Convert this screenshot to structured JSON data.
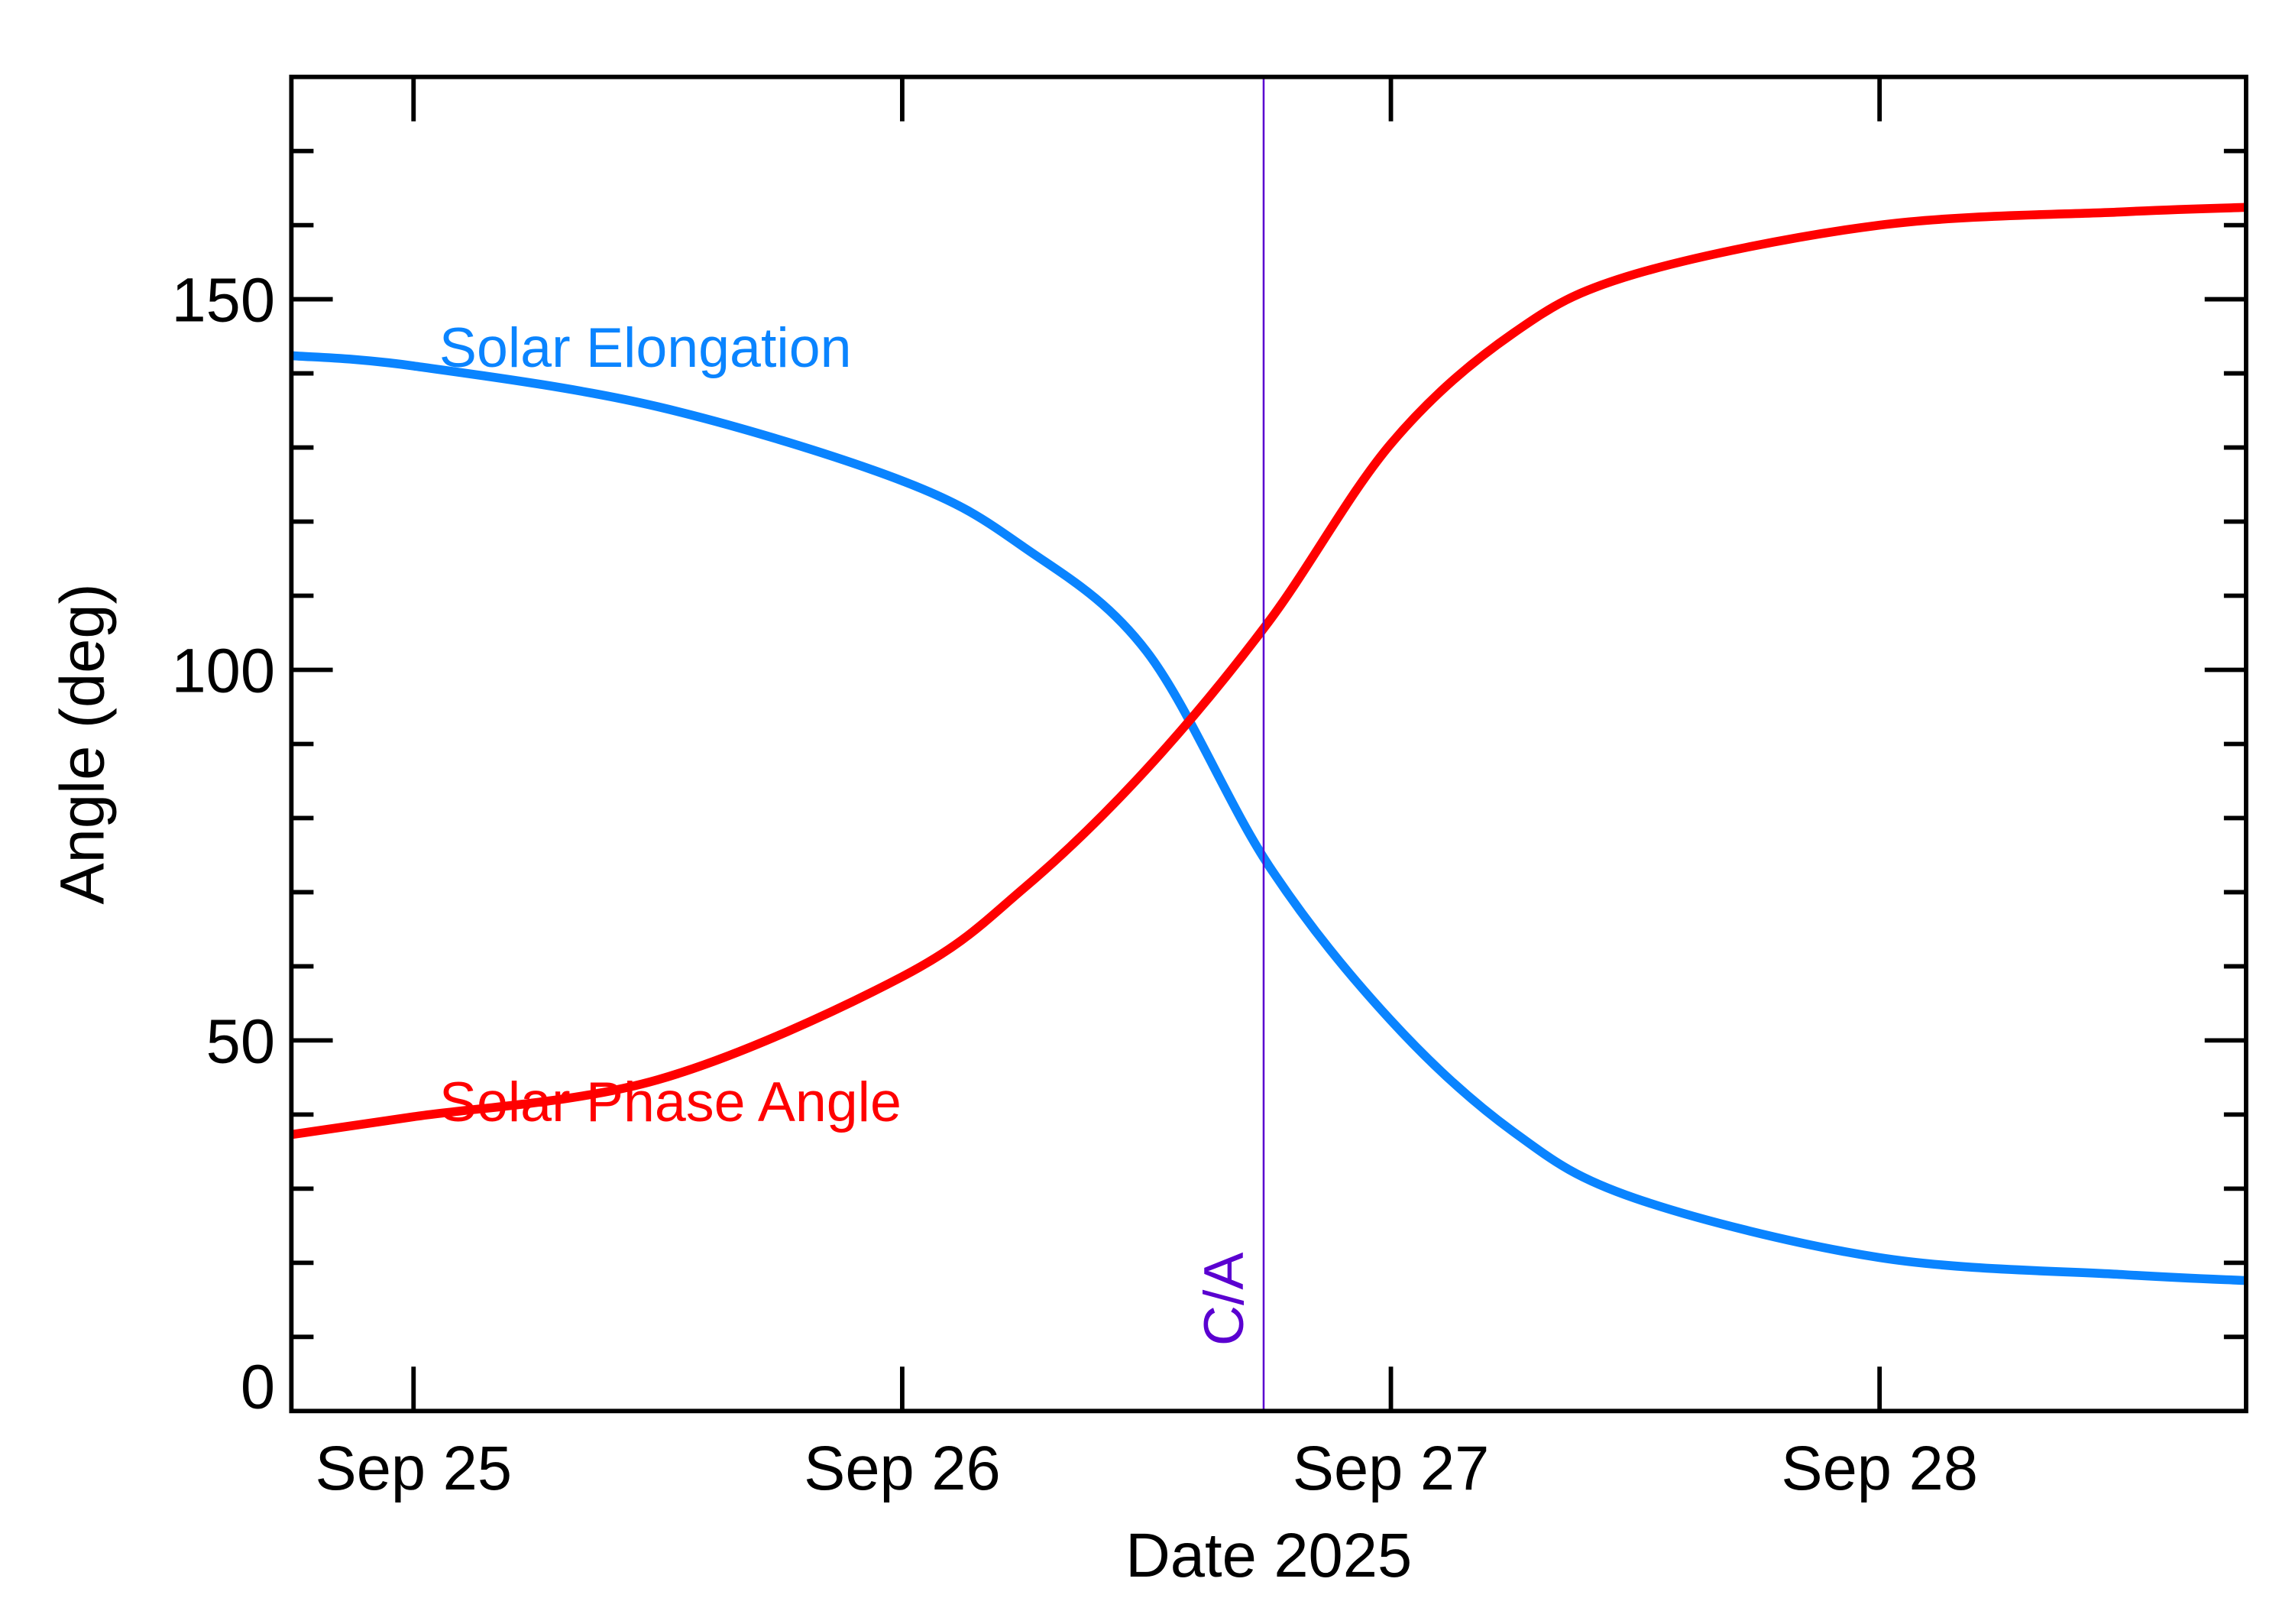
{
  "chart_data": {
    "type": "line",
    "title": "",
    "xlabel": "Date 2025",
    "ylabel": "Angle (deg)",
    "xlim": [
      "2025-09-24 18:00",
      "2025-09-28 18:00"
    ],
    "ylim": [
      0,
      180
    ],
    "x_ticks": [
      {
        "date": "2025-09-25 00:00",
        "label": "Sep 25"
      },
      {
        "date": "2025-09-26 00:00",
        "label": "Sep 26"
      },
      {
        "date": "2025-09-27 00:00",
        "label": "Sep 27"
      },
      {
        "date": "2025-09-28 00:00",
        "label": "Sep 28"
      }
    ],
    "y_ticks": [
      {
        "value": 0,
        "label": "0"
      },
      {
        "value": 50,
        "label": "50"
      },
      {
        "value": 100,
        "label": "100"
      },
      {
        "value": 150,
        "label": "150"
      }
    ],
    "y_minor_step": 10,
    "grid": false,
    "closest_approach": {
      "date": "2025-09-26 17:45",
      "label": "C/A",
      "color": "#5a00d0"
    },
    "series": [
      {
        "name": "Solar Elongation",
        "color": "#0a84ff",
        "points": [
          [
            "2025-09-24 18:00",
            142.4
          ],
          [
            "2025-09-25 00:00",
            141.0
          ],
          [
            "2025-09-25 12:00",
            135.5
          ],
          [
            "2025-09-26 00:00",
            125.5
          ],
          [
            "2025-09-26 06:00",
            116.5
          ],
          [
            "2025-09-26 12:00",
            102.5
          ],
          [
            "2025-09-26 18:00",
            73.6
          ],
          [
            "2025-09-27 00:00",
            52.7
          ],
          [
            "2025-09-27 06:00",
            37.7
          ],
          [
            "2025-09-27 12:00",
            28.7
          ],
          [
            "2025-09-28 00:00",
            20.7
          ],
          [
            "2025-09-28 12:00",
            18.4
          ],
          [
            "2025-09-28 18:00",
            17.6
          ]
        ]
      },
      {
        "name": "Solar Phase Angle",
        "color": "#ff0000",
        "points": [
          [
            "2025-09-24 18:00",
            37.3
          ],
          [
            "2025-09-25 00:00",
            39.7
          ],
          [
            "2025-09-25 12:00",
            44.7
          ],
          [
            "2025-09-26 00:00",
            58.6
          ],
          [
            "2025-09-26 06:00",
            70.6
          ],
          [
            "2025-09-26 12:00",
            86.6
          ],
          [
            "2025-09-26 18:00",
            106.5
          ],
          [
            "2025-09-27 00:00",
            130.5
          ],
          [
            "2025-09-27 06:00",
            145.4
          ],
          [
            "2025-09-27 12:00",
            153.4
          ],
          [
            "2025-09-28 00:00",
            160.0
          ],
          [
            "2025-09-28 12:00",
            161.8
          ],
          [
            "2025-09-28 18:00",
            162.4
          ]
        ]
      }
    ]
  }
}
